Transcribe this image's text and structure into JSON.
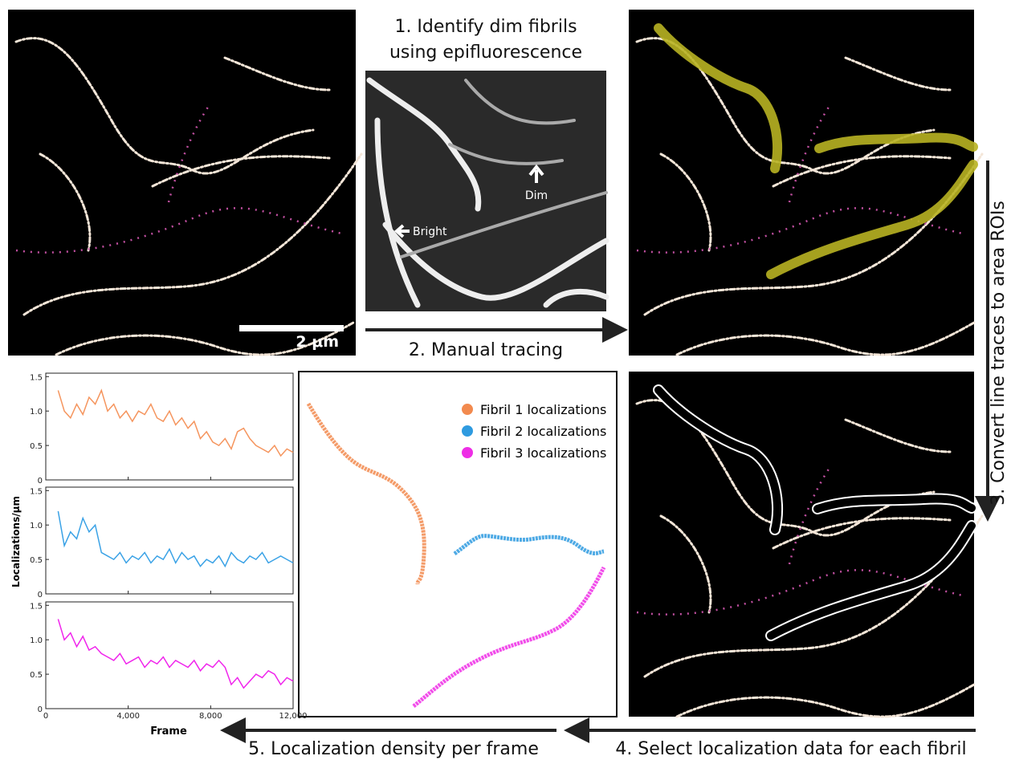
{
  "step1": [
    "1. Identify dim fibrils",
    "using epifluorescence"
  ],
  "epi_labels": {
    "bright": "Bright",
    "dim": "Dim"
  },
  "scale_bar": "2 μm",
  "step2": "2. Manual tracing",
  "step3": "3. Convert line traces to area ROIs",
  "step4": "4. Select localization data for each fibril",
  "step5": "5. Localization density per frame",
  "legend": [
    {
      "name": "Fibril 1 localizations",
      "color": "#f28a4e"
    },
    {
      "name": "Fibril 2 localizations",
      "color": "#2f9be0"
    },
    {
      "name": "Fibril 3 localizations",
      "color": "#ee2ee6"
    }
  ],
  "density_plots": {
    "y_label": "Localizations/μm",
    "x_label": "Frame",
    "xlim": [
      0,
      12000
    ],
    "ylim": [
      0,
      1.55
    ],
    "xticks": [
      0,
      {
        "value": 4000,
        "label": "4,000"
      },
      {
        "value": 8000,
        "label": "8,000"
      },
      {
        "value": 12000,
        "label": "12,000"
      }
    ],
    "yticks": [
      0,
      0.5,
      {
        "value": 1,
        "label": "1.0"
      },
      1.5
    ],
    "x": [
      600,
      900,
      1200,
      1500,
      1800,
      2100,
      2400,
      2700,
      3000,
      3300,
      3600,
      3900,
      4200,
      4500,
      4800,
      5100,
      5400,
      5700,
      6000,
      6300,
      6600,
      6900,
      7200,
      7500,
      7800,
      8100,
      8400,
      8700,
      9000,
      9300,
      9600,
      9900,
      10200,
      10500,
      10800,
      11100,
      11400,
      11700,
      12000
    ],
    "series": [
      {
        "color": "#f5955e",
        "values": [
          1.3,
          1.0,
          0.9,
          1.1,
          0.95,
          1.2,
          1.1,
          1.3,
          1.0,
          1.1,
          0.9,
          1.0,
          0.85,
          1.0,
          0.95,
          1.1,
          0.9,
          0.85,
          1.0,
          0.8,
          0.9,
          0.75,
          0.85,
          0.6,
          0.7,
          0.55,
          0.5,
          0.6,
          0.45,
          0.7,
          0.75,
          0.6,
          0.5,
          0.45,
          0.4,
          0.5,
          0.35,
          0.45,
          0.4
        ]
      },
      {
        "color": "#3aa2e6",
        "values": [
          1.2,
          0.7,
          0.9,
          0.8,
          1.1,
          0.9,
          1.0,
          0.6,
          0.55,
          0.5,
          0.6,
          0.45,
          0.55,
          0.5,
          0.6,
          0.45,
          0.55,
          0.5,
          0.65,
          0.45,
          0.6,
          0.5,
          0.55,
          0.4,
          0.5,
          0.45,
          0.55,
          0.4,
          0.6,
          0.5,
          0.45,
          0.55,
          0.5,
          0.6,
          0.45,
          0.5,
          0.55,
          0.5,
          0.45
        ]
      },
      {
        "color": "#f024ec",
        "values": [
          1.3,
          1.0,
          1.1,
          0.9,
          1.05,
          0.85,
          0.9,
          0.8,
          0.75,
          0.7,
          0.8,
          0.65,
          0.7,
          0.75,
          0.6,
          0.7,
          0.65,
          0.75,
          0.6,
          0.7,
          0.65,
          0.6,
          0.7,
          0.55,
          0.65,
          0.6,
          0.7,
          0.6,
          0.35,
          0.45,
          0.3,
          0.4,
          0.5,
          0.45,
          0.55,
          0.5,
          0.35,
          0.45,
          0.4
        ]
      }
    ]
  }
}
